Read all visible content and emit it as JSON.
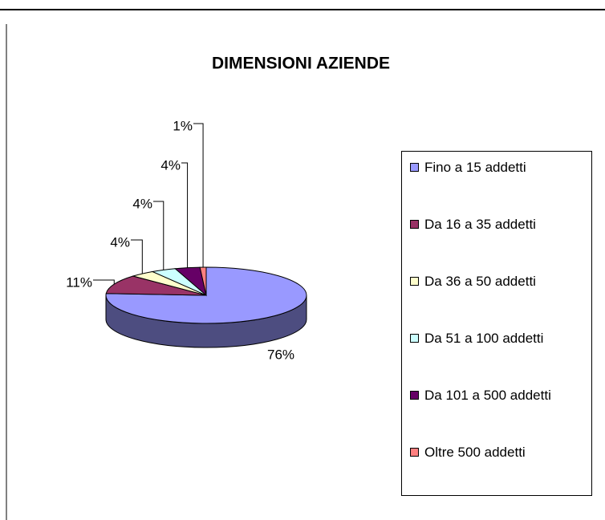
{
  "chart_data": {
    "type": "pie",
    "title": "DIMENSIONI AZIENDE",
    "categories": [
      "Fino a 15 addetti",
      "Da 16 a 35 addetti",
      "Da 36 a 50 addetti",
      "Da 51 a 100 addetti",
      "Da 101 a 500 addetti",
      "Oltre 500 addetti"
    ],
    "values": [
      76,
      11,
      4,
      4,
      4,
      1
    ],
    "value_labels": [
      "76%",
      "11%",
      "4%",
      "4%",
      "4%",
      "1%"
    ],
    "colors": [
      "#9999ff",
      "#993366",
      "#ffffcc",
      "#ccffff",
      "#660066",
      "#ff8080"
    ],
    "legend": "right"
  }
}
